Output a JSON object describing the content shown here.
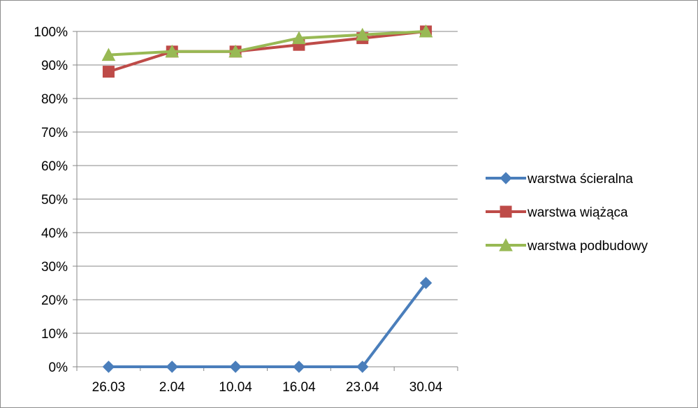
{
  "chart_data": {
    "type": "line",
    "categories": [
      "26.03",
      "2.04",
      "10.04",
      "16.04",
      "23.04",
      "30.04"
    ],
    "ylim": [
      0,
      100
    ],
    "y_ticks": [
      0,
      10,
      20,
      30,
      40,
      50,
      60,
      70,
      80,
      90,
      100
    ],
    "y_tick_labels": [
      "0%",
      "10%",
      "20%",
      "30%",
      "40%",
      "50%",
      "60%",
      "70%",
      "80%",
      "90%",
      "100%"
    ],
    "grid": "horizontal",
    "legend_position": "right",
    "series": [
      {
        "name": "warstwa ścieralna",
        "values": [
          0,
          0,
          0,
          0,
          0,
          25
        ],
        "color": "#4a7ebb",
        "marker": "diamond"
      },
      {
        "name": "warstwa wiążąca",
        "values": [
          88,
          94,
          94,
          96,
          98,
          100
        ],
        "color": "#be4b48",
        "marker": "square"
      },
      {
        "name": "warstwa podbudowy",
        "values": [
          93,
          94,
          94,
          98,
          99,
          100
        ],
        "color": "#98b954",
        "marker": "triangle"
      }
    ]
  }
}
